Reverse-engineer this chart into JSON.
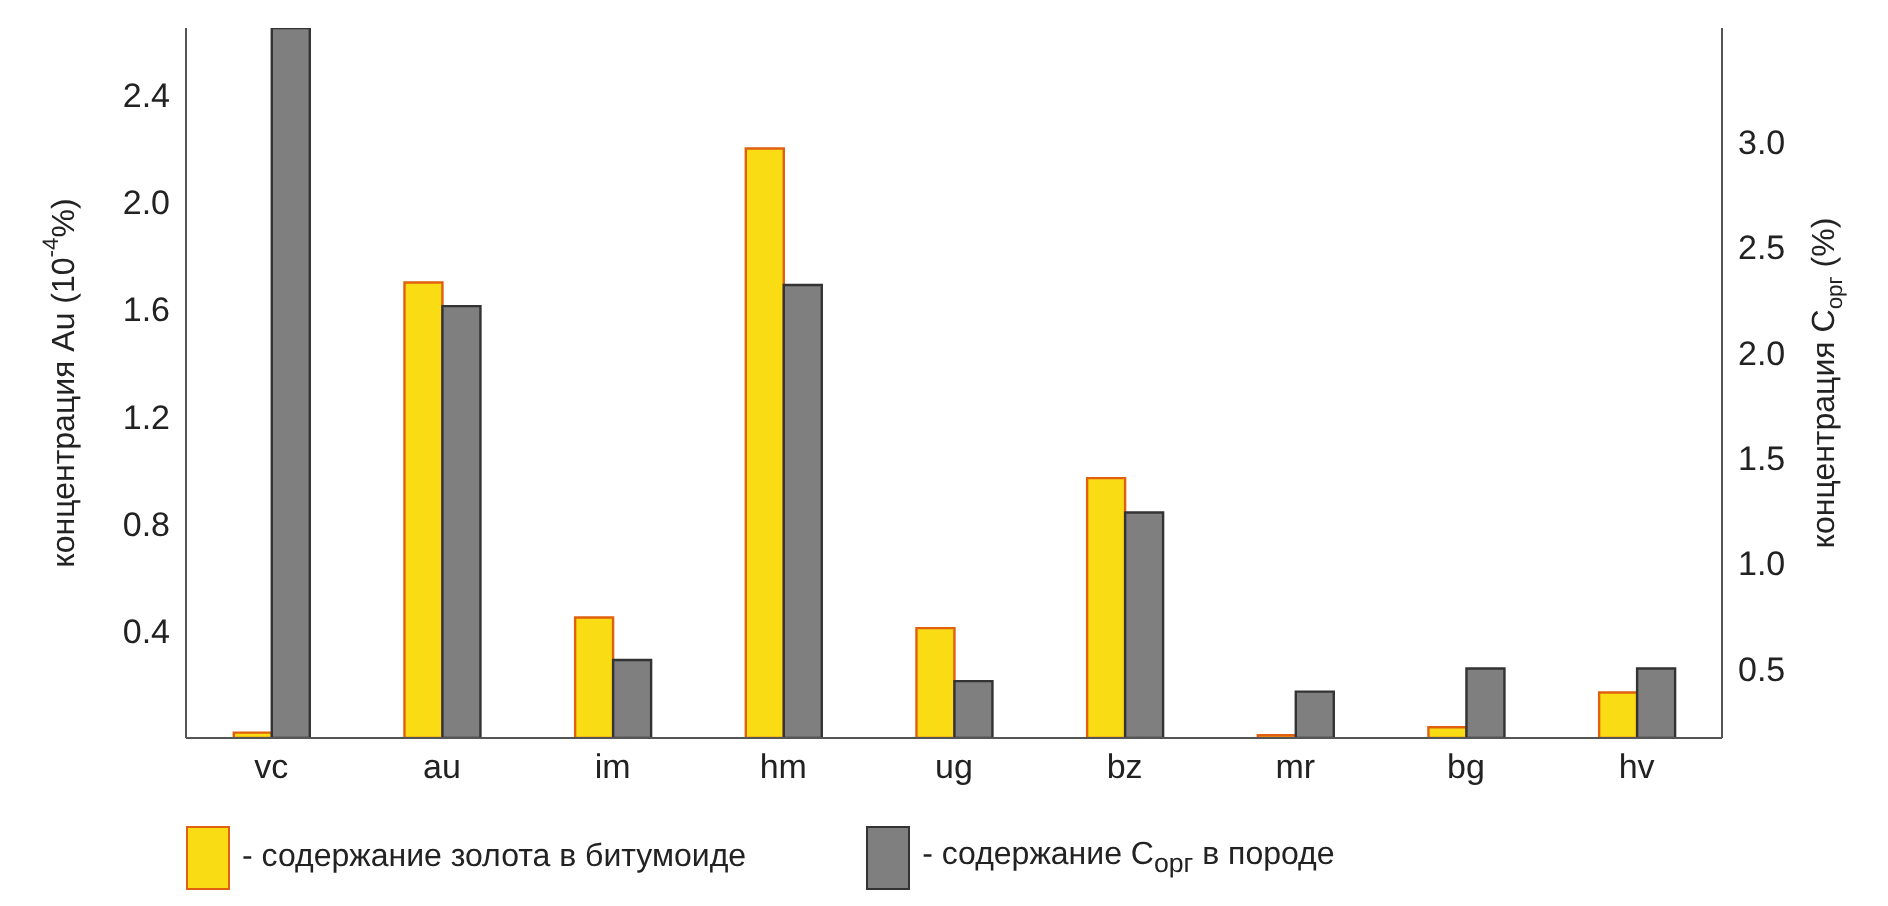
{
  "chart_data": {
    "type": "bar",
    "ylabel": "концентрация Au  (10$^{-4}$%)",
    "y2label": "концентрация C$_{орг}$  (%)",
    "categories": [
      "vc",
      "au",
      "im",
      "hm",
      "ug",
      "bz",
      "mr",
      "bg",
      "hv"
    ],
    "series": [
      {
        "name": "- содержание золота в битумоиде",
        "color": "#f9dc14",
        "values": [
          0.02,
          1.7,
          0.45,
          2.2,
          0.41,
          0.97,
          0.01,
          0.04,
          0.17
        ]
      },
      {
        "name": "- содержание C$_{орг}$ в породе",
        "color": "#7f7f7f",
        "axis": "y2",
        "values": [
          3.54,
          2.22,
          0.54,
          2.32,
          0.44,
          1.24,
          0.39,
          0.5,
          0.5
        ]
      }
    ],
    "ylim": [
      0,
      2.65
    ],
    "yticks": [
      0.4,
      0.8,
      1.2,
      1.6,
      {
        "value": 2,
        "label": "2.0"
      },
      2.4
    ],
    "y2lim": [
      0.17,
      3.54
    ],
    "y2ticks": [
      0.5,
      {
        "value": 1,
        "label": "1.0"
      },
      1.5,
      {
        "value": 2,
        "label": "2.0"
      },
      2.5,
      {
        "value": 3,
        "label": "3.0"
      }
    ],
    "grid": false,
    "legend": "bottom"
  }
}
